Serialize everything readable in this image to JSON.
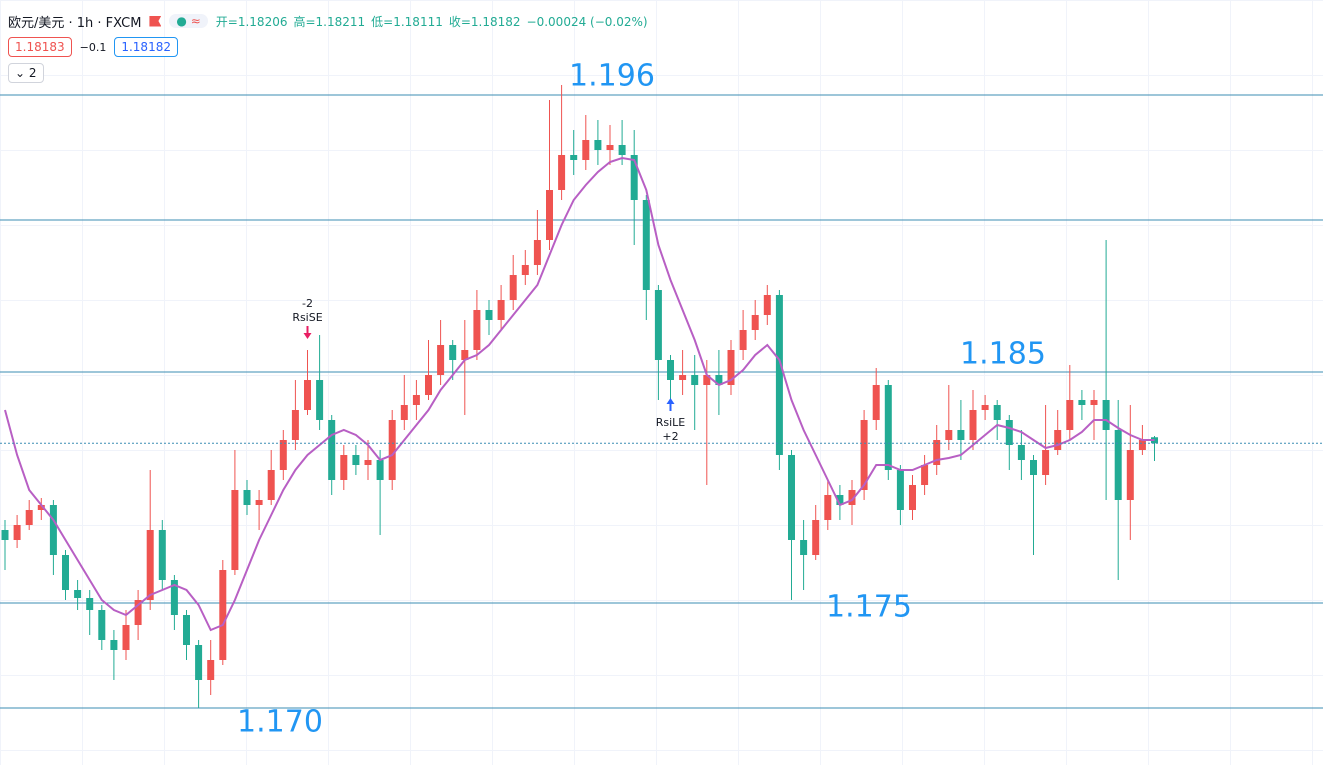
{
  "chart_data": {
    "type": "candlestick",
    "title": "欧元/美元 · 1h · FXCM",
    "ohlc_text": [
      "开=1.18206",
      "高=1.18211",
      "低=1.18111",
      "收=1.18182",
      "−0.00024 (−0.02%)"
    ],
    "buttons": {
      "sell": "1.18183",
      "spread": "−0.1",
      "buy": "1.18182",
      "indicators": "2"
    },
    "up_color": "#ef5350",
    "down_color": "#22ab94",
    "ma_color": "#b85fc4",
    "level_color": "#3b8db3",
    "annotation_color": "#2196f3",
    "ylim": [
      1.16895,
      1.19955
    ],
    "candles": [
      [
        1.17835,
        1.17875,
        1.17675,
        1.17795
      ],
      [
        1.17795,
        1.17895,
        1.17763,
        1.17855
      ],
      [
        1.17855,
        1.17955,
        1.17835,
        1.17915
      ],
      [
        1.17915,
        1.17963,
        1.17875,
        1.17935
      ],
      [
        1.17935,
        1.17955,
        1.17655,
        1.17735
      ],
      [
        1.17735,
        1.17755,
        1.17555,
        1.17595
      ],
      [
        1.17595,
        1.17635,
        1.17515,
        1.17563
      ],
      [
        1.17563,
        1.17595,
        1.17415,
        1.17515
      ],
      [
        1.17515,
        1.17535,
        1.17355,
        1.17395
      ],
      [
        1.17395,
        1.17435,
        1.17235,
        1.17355
      ],
      [
        1.17355,
        1.17515,
        1.17315,
        1.17455
      ],
      [
        1.17455,
        1.17595,
        1.17395,
        1.17555
      ],
      [
        1.17555,
        1.18075,
        1.17515,
        1.17835
      ],
      [
        1.17835,
        1.17875,
        1.17595,
        1.17635
      ],
      [
        1.17635,
        1.17655,
        1.17435,
        1.17495
      ],
      [
        1.17495,
        1.17515,
        1.17315,
        1.17375
      ],
      [
        1.17375,
        1.17395,
        1.17123,
        1.17235
      ],
      [
        1.17235,
        1.17395,
        1.17175,
        1.17315
      ],
      [
        1.17315,
        1.17715,
        1.17295,
        1.17675
      ],
      [
        1.17675,
        1.18155,
        1.17655,
        1.17995
      ],
      [
        1.17995,
        1.18035,
        1.17895,
        1.17935
      ],
      [
        1.17935,
        1.17995,
        1.17835,
        1.17955
      ],
      [
        1.17955,
        1.18155,
        1.17935,
        1.18075
      ],
      [
        1.18075,
        1.18235,
        1.18035,
        1.18195
      ],
      [
        1.18195,
        1.18435,
        1.18155,
        1.18315
      ],
      [
        1.18315,
        1.18555,
        1.18295,
        1.18435
      ],
      [
        1.18435,
        1.18615,
        1.18235,
        1.18275
      ],
      [
        1.18275,
        1.18295,
        1.17975,
        1.18035
      ],
      [
        1.18035,
        1.18175,
        1.17995,
        1.18135
      ],
      [
        1.18135,
        1.18175,
        1.18055,
        1.18095
      ],
      [
        1.18095,
        1.18195,
        1.18035,
        1.18115
      ],
      [
        1.18115,
        1.18155,
        1.17815,
        1.18035
      ],
      [
        1.18035,
        1.18315,
        1.17995,
        1.18275
      ],
      [
        1.18275,
        1.18455,
        1.18235,
        1.18335
      ],
      [
        1.18335,
        1.18435,
        1.18275,
        1.18375
      ],
      [
        1.18375,
        1.18595,
        1.18355,
        1.18455
      ],
      [
        1.18455,
        1.18675,
        1.18415,
        1.18575
      ],
      [
        1.18575,
        1.18595,
        1.18435,
        1.18515
      ],
      [
        1.18515,
        1.18675,
        1.18295,
        1.18555
      ],
      [
        1.18555,
        1.18795,
        1.18515,
        1.18715
      ],
      [
        1.18715,
        1.18755,
        1.18615,
        1.18675
      ],
      [
        1.18675,
        1.18815,
        1.18635,
        1.18755
      ],
      [
        1.18755,
        1.18935,
        1.18715,
        1.18855
      ],
      [
        1.18855,
        1.18955,
        1.18815,
        1.18895
      ],
      [
        1.18895,
        1.19115,
        1.18855,
        1.18995
      ],
      [
        1.18995,
        1.19555,
        1.18955,
        1.19195
      ],
      [
        1.19195,
        1.19615,
        1.19155,
        1.19335
      ],
      [
        1.19335,
        1.19435,
        1.19255,
        1.19315
      ],
      [
        1.19315,
        1.19495,
        1.19275,
        1.19395
      ],
      [
        1.19395,
        1.19475,
        1.19295,
        1.19355
      ],
      [
        1.19355,
        1.19455,
        1.19295,
        1.19375
      ],
      [
        1.19375,
        1.19475,
        1.19295,
        1.19335
      ],
      [
        1.19335,
        1.19435,
        1.18975,
        1.19155
      ],
      [
        1.19155,
        1.19175,
        1.18675,
        1.18795
      ],
      [
        1.18795,
        1.18815,
        1.18355,
        1.18515
      ],
      [
        1.18515,
        1.18535,
        1.18315,
        1.18435
      ],
      [
        1.18435,
        1.18555,
        1.18375,
        1.18455
      ],
      [
        1.18455,
        1.18535,
        1.18235,
        1.18415
      ],
      [
        1.18415,
        1.18515,
        1.18015,
        1.18455
      ],
      [
        1.18455,
        1.18555,
        1.18295,
        1.18415
      ],
      [
        1.18415,
        1.18595,
        1.18375,
        1.18555
      ],
      [
        1.18555,
        1.18715,
        1.18515,
        1.18635
      ],
      [
        1.18635,
        1.18755,
        1.18595,
        1.18695
      ],
      [
        1.18695,
        1.18815,
        1.18655,
        1.18775
      ],
      [
        1.18775,
        1.18795,
        1.18075,
        1.18135
      ],
      [
        1.18135,
        1.18155,
        1.17555,
        1.17795
      ],
      [
        1.17795,
        1.17875,
        1.17595,
        1.17735
      ],
      [
        1.17735,
        1.17935,
        1.17715,
        1.17875
      ],
      [
        1.17875,
        1.18035,
        1.17835,
        1.17975
      ],
      [
        1.17975,
        1.18015,
        1.17875,
        1.17935
      ],
      [
        1.17935,
        1.18035,
        1.17855,
        1.17995
      ],
      [
        1.17995,
        1.18315,
        1.17955,
        1.18275
      ],
      [
        1.18275,
        1.18483,
        1.18235,
        1.18415
      ],
      [
        1.18415,
        1.18435,
        1.18035,
        1.18075
      ],
      [
        1.18075,
        1.18095,
        1.17855,
        1.17915
      ],
      [
        1.17915,
        1.18055,
        1.17875,
        1.18015
      ],
      [
        1.18015,
        1.18135,
        1.17975,
        1.18095
      ],
      [
        1.18095,
        1.18255,
        1.18055,
        1.18195
      ],
      [
        1.18195,
        1.18415,
        1.18155,
        1.18235
      ],
      [
        1.18235,
        1.18355,
        1.18115,
        1.18195
      ],
      [
        1.18195,
        1.18395,
        1.18155,
        1.18315
      ],
      [
        1.18315,
        1.18375,
        1.18275,
        1.18335
      ],
      [
        1.18335,
        1.18355,
        1.18195,
        1.18275
      ],
      [
        1.18275,
        1.18295,
        1.18075,
        1.18175
      ],
      [
        1.18175,
        1.18235,
        1.18035,
        1.18115
      ],
      [
        1.18115,
        1.18135,
        1.17735,
        1.18055
      ],
      [
        1.18055,
        1.18335,
        1.18015,
        1.18155
      ],
      [
        1.18155,
        1.18315,
        1.18135,
        1.18235
      ],
      [
        1.18235,
        1.18495,
        1.18195,
        1.18355
      ],
      [
        1.18355,
        1.18395,
        1.18275,
        1.18335
      ],
      [
        1.18335,
        1.18395,
        1.18195,
        1.18355
      ],
      [
        1.18355,
        1.18995,
        1.17955,
        1.18235
      ],
      [
        1.18235,
        1.18355,
        1.17635,
        1.17955
      ],
      [
        1.17955,
        1.18335,
        1.17795,
        1.18155
      ],
      [
        1.18155,
        1.18255,
        1.18135,
        1.18195
      ],
      [
        1.18206,
        1.18211,
        1.18111,
        1.18182
      ]
    ],
    "ma": [
      1.18315,
      1.18135,
      1.17995,
      1.17935,
      1.17875,
      1.17795,
      1.17715,
      1.17635,
      1.17555,
      1.17515,
      1.17495,
      1.17535,
      1.17575,
      1.17595,
      1.17615,
      1.17595,
      1.17535,
      1.17435,
      1.17455,
      1.17555,
      1.17675,
      1.17795,
      1.17895,
      1.17995,
      1.18075,
      1.18135,
      1.18175,
      1.18215,
      1.18235,
      1.18215,
      1.18175,
      1.18115,
      1.18135,
      1.18195,
      1.18255,
      1.18315,
      1.18395,
      1.18455,
      1.18515,
      1.18535,
      1.18575,
      1.18635,
      1.18695,
      1.18755,
      1.18815,
      1.18935,
      1.19055,
      1.19155,
      1.19215,
      1.19267,
      1.19307,
      1.19323,
      1.19315,
      1.19195,
      1.18975,
      1.18835,
      1.18715,
      1.18595,
      1.18455,
      1.18415,
      1.18435,
      1.18475,
      1.18535,
      1.18575,
      1.18515,
      1.18355,
      1.18235,
      1.18135,
      1.18035,
      1.17935,
      1.17955,
      1.18015,
      1.18095,
      1.18095,
      1.18075,
      1.18075,
      1.18095,
      1.18115,
      1.18123,
      1.18135,
      1.18175,
      1.18215,
      1.18255,
      1.18243,
      1.18227,
      1.18195,
      1.18163,
      1.18175,
      1.18195,
      1.18227,
      1.18275,
      1.18275,
      1.18243,
      1.18215,
      1.18195,
      1.18195
    ],
    "levels": [
      1.19575,
      1.19075,
      1.18467,
      1.17543,
      1.17123
    ],
    "annotations": [
      "1.196",
      "1.185",
      "1.175",
      "1.170"
    ],
    "signals": [
      {
        "qty": "-2",
        "label": "RsiSE",
        "candle": 25,
        "side": "short"
      },
      {
        "qty": "+2",
        "label": "RsiLE",
        "candle": 55,
        "side": "long"
      }
    ]
  }
}
